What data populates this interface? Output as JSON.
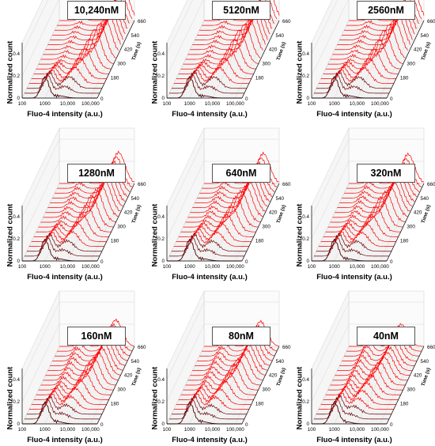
{
  "colors": {
    "trace": "#ff0000",
    "trace_dark": "#6b0000",
    "grid": "#d0d0d0",
    "box": "#555555",
    "first_trace": "#4a0000"
  },
  "chart_data": {
    "type": "area",
    "shared": {
      "xlabel": "Fluo-4 intensity (a.u.)",
      "ylabel": "Normalized count",
      "zlabel": "Time (s)",
      "x_scale": "log",
      "x_ticks": [
        "100",
        "1000",
        "10,000",
        "100,000"
      ],
      "y_ticks": [
        "0",
        "0.2",
        "0.4"
      ],
      "z_ticks": [
        "0",
        "180",
        "300",
        "420",
        "540",
        "660"
      ],
      "ylim": [
        0,
        0.5
      ],
      "zlim": [
        0,
        660
      ],
      "grid": true
    },
    "panels": [
      {
        "title": "10,240nM",
        "low_peak_x": 1000,
        "high_peak_x": 60000,
        "response": 0.95
      },
      {
        "title": "5120nM",
        "low_peak_x": 1000,
        "high_peak_x": 60000,
        "response": 0.93
      },
      {
        "title": "2560nM",
        "low_peak_x": 1000,
        "high_peak_x": 60000,
        "response": 0.92
      },
      {
        "title": "1280nM",
        "low_peak_x": 1000,
        "high_peak_x": 40000,
        "response": 0.85
      },
      {
        "title": "640nM",
        "low_peak_x": 1000,
        "high_peak_x": 40000,
        "response": 0.82
      },
      {
        "title": "320nM",
        "low_peak_x": 1000,
        "high_peak_x": 40000,
        "response": 0.8
      },
      {
        "title": "160nM",
        "low_peak_x": 1000,
        "high_peak_x": 30000,
        "response": 0.72
      },
      {
        "title": "80nM",
        "low_peak_x": 1000,
        "high_peak_x": 30000,
        "response": 0.68
      },
      {
        "title": "40nM",
        "low_peak_x": 1000,
        "high_peak_x": 20000,
        "response": 0.6
      }
    ]
  }
}
